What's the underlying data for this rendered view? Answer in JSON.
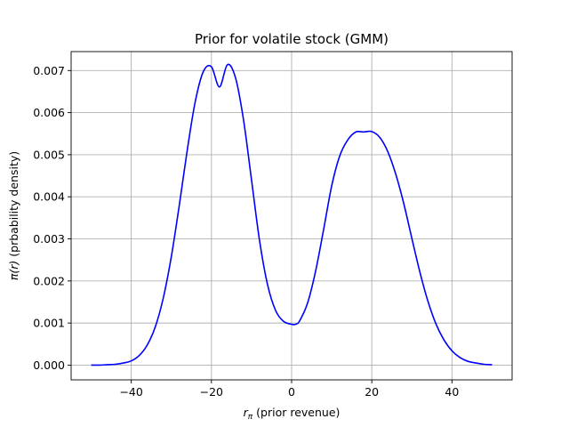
{
  "chart_data": {
    "type": "line",
    "title": "Prior for volatile stock (GMM)",
    "xlabel_symbol": "r",
    "xlabel_subscript": "π",
    "xlabel_rest": " (prior revenue)",
    "ylabel_symbol": "π(r)",
    "ylabel_rest": " (prbability density)",
    "xlim": [
      -55,
      55
    ],
    "ylim": [
      -0.00035,
      0.00745
    ],
    "xticks": [
      -40,
      -20,
      0,
      20,
      40
    ],
    "yticks": [
      0.0,
      0.001,
      0.002,
      0.003,
      0.004,
      0.005,
      0.006,
      0.007
    ],
    "xtick_labels": [
      "−40",
      "−20",
      "0",
      "20",
      "40"
    ],
    "ytick_labels": [
      "0.000",
      "0.001",
      "0.002",
      "0.003",
      "0.004",
      "0.005",
      "0.006",
      "0.007"
    ],
    "grid": true,
    "line_color": "#0000ff",
    "series": [
      {
        "x": [
          -50,
          -48,
          -46,
          -44,
          -42,
          -40,
          -38,
          -36,
          -34,
          -32,
          -30,
          -28,
          -26,
          -24,
          -22,
          -20,
          -18,
          -16,
          -14,
          -12,
          -10,
          -8,
          -6,
          -4,
          -2,
          0,
          1,
          2,
          4,
          6,
          8,
          10,
          12,
          14,
          16,
          18,
          20,
          22,
          24,
          26,
          28,
          30,
          32,
          34,
          36,
          38,
          40,
          42,
          44,
          46,
          48,
          50
        ],
        "y": [
          0.0,
          0.0,
          1e-05,
          2e-05,
          5e-05,
          0.0001,
          0.00023,
          0.00048,
          0.00091,
          0.0016,
          0.00258,
          0.00381,
          0.00513,
          0.00628,
          0.00698,
          0.00709,
          0.00661,
          0.00714,
          0.00683,
          0.00583,
          0.0044,
          0.00296,
          0.00191,
          0.0013,
          0.00104,
          0.00097,
          0.00097,
          0.00105,
          0.00148,
          0.00224,
          0.00323,
          0.00426,
          0.00497,
          0.00535,
          0.00554,
          0.00554,
          0.00555,
          0.00541,
          0.00507,
          0.00453,
          0.00383,
          0.00301,
          0.00221,
          0.00152,
          0.00098,
          0.0006,
          0.00034,
          0.00018,
          9e-05,
          5e-05,
          2e-05,
          1e-05
        ]
      }
    ]
  }
}
